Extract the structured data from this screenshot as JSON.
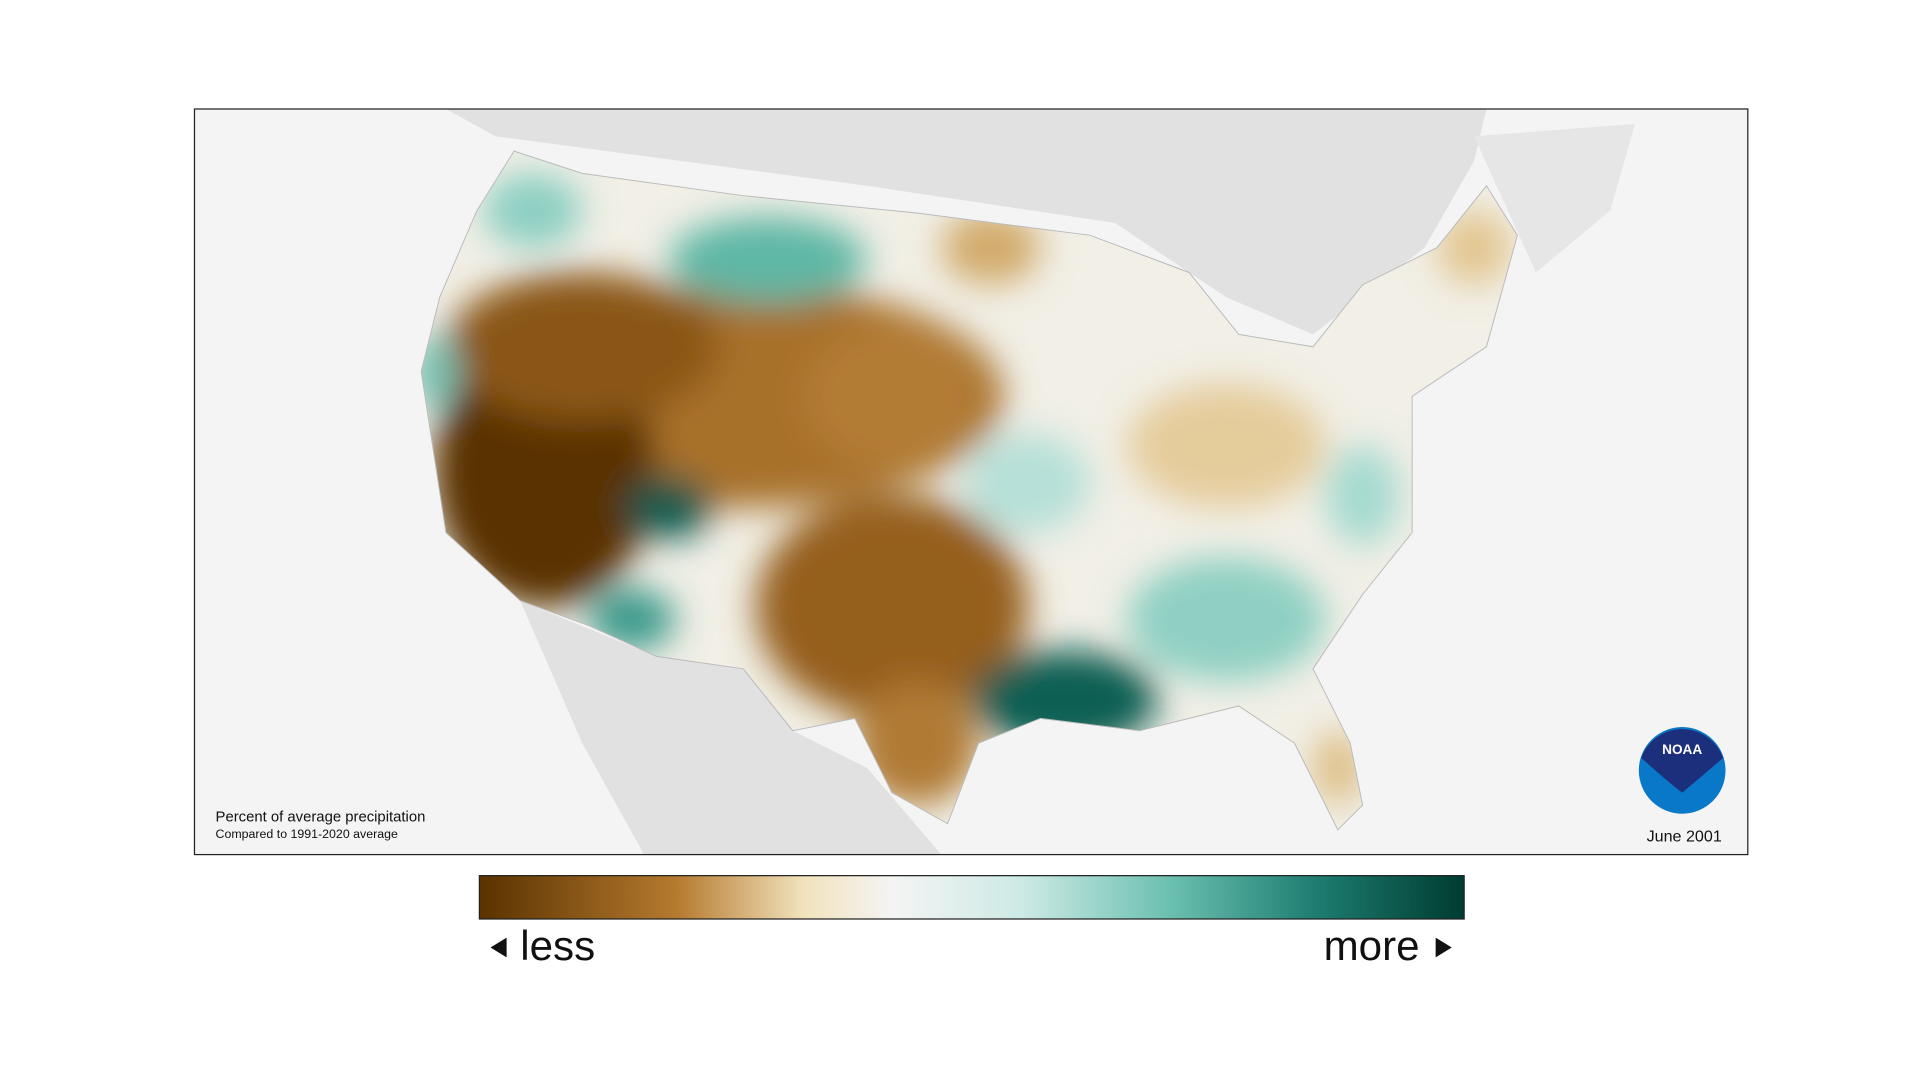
{
  "map": {
    "caption": "Percent of average precipitation",
    "subcaption": "Compared to 1991-2020 average",
    "date": "June 2001",
    "logo": "NOAA"
  },
  "legend": {
    "low_label": "less",
    "high_label": "more"
  }
}
